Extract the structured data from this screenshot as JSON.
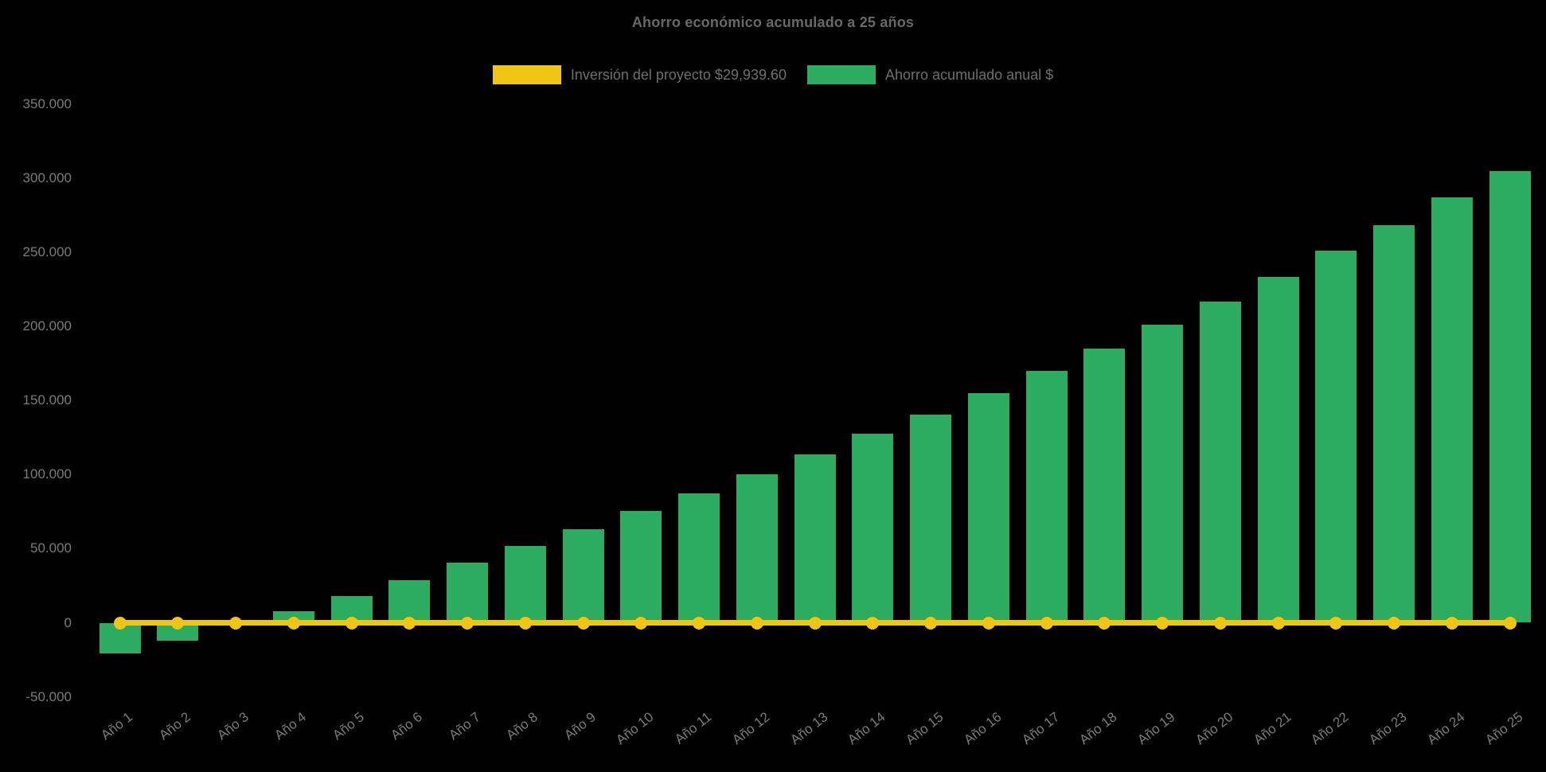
{
  "title": "Ahorro económico acumulado a 25 años",
  "colors": {
    "background": "#000000",
    "bar_green": "#2bac60",
    "line_yellow": "#f0c514",
    "title_text": "#686868",
    "tick_text": "#7a7a7a"
  },
  "legend": {
    "items": [
      {
        "label": "Inversión del proyecto $29,939.60",
        "color": "#f0c514"
      },
      {
        "label": "Ahorro acumulado anual $",
        "color": "#2bac60"
      }
    ]
  },
  "chart_data": {
    "type": "bar",
    "title": "Ahorro económico acumulado a 25 años",
    "categories": [
      "Año 1",
      "Año 2",
      "Año 3",
      "Año 4",
      "Año 5",
      "Año 6",
      "Año 7",
      "Año 8",
      "Año 9",
      "Año 10",
      "Año 11",
      "Año 12",
      "Año 13",
      "Año 14",
      "Año 15",
      "Año 16",
      "Año 17",
      "Año 18",
      "Año 19",
      "Año 20",
      "Año 21",
      "Año 22",
      "Año 23",
      "Año 24",
      "Año 25"
    ],
    "series": [
      {
        "name": "Inversión del proyecto $29,939.60",
        "type": "line",
        "color": "#f0c514",
        "point_style": "circle",
        "investment_amount_text": "$29,939.60",
        "values": [
          0,
          0,
          0,
          0,
          0,
          0,
          0,
          0,
          0,
          0,
          0,
          0,
          0,
          0,
          0,
          0,
          0,
          0,
          0,
          0,
          0,
          0,
          0,
          0,
          0
        ]
      },
      {
        "name": "Ahorro acumulado anual $",
        "type": "bar",
        "color": "#2bac60",
        "values": [
          -20500,
          -12000,
          -1000,
          8000,
          18000,
          29000,
          40500,
          52000,
          63000,
          75500,
          87500,
          100000,
          113500,
          127500,
          140500,
          155000,
          170000,
          185000,
          201000,
          217000,
          233500,
          251000,
          268500,
          287000,
          305000
        ]
      }
    ],
    "xlabel": "",
    "ylabel": "",
    "ylim": [
      -50000,
      350000
    ],
    "ytick_step": 50000,
    "ytick_labels": [
      "350.000",
      "300.000",
      "250.000",
      "200.000",
      "150.000",
      "100.000",
      "50.000",
      "0",
      "-50.000"
    ],
    "ytick_values": [
      350000,
      300000,
      250000,
      200000,
      150000,
      100000,
      50000,
      0,
      -50000
    ],
    "grid": false,
    "legend_position": "top",
    "x_label_rotation_deg": -38
  }
}
